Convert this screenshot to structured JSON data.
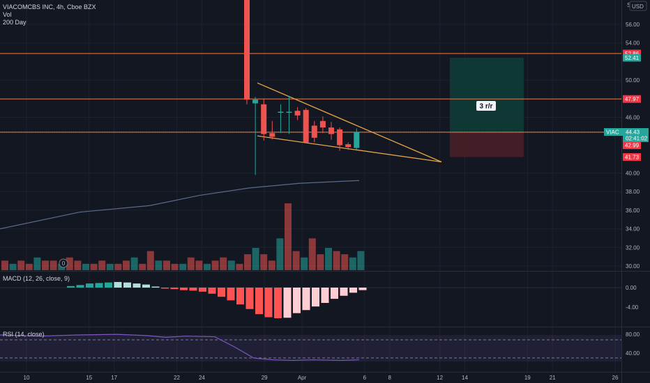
{
  "header": {
    "symbol_title": "VIACOMCBS INC, 4h, Cboe BZX",
    "vol_label": "Vol",
    "ma_label": "200 Day",
    "currency": "USD",
    "currency_prefix": "S"
  },
  "macd_header": "MACD (12, 26, close, 9)",
  "rsi_header": "RSI (14, close)",
  "volume_marker": "0",
  "annotation": "3 r/r",
  "price_tags": [
    {
      "text": "52.86",
      "price": 52.86,
      "color": "#f23645"
    },
    {
      "text": "52.41",
      "price": 52.41,
      "color": "#26a69a"
    },
    {
      "text": "47.97",
      "price": 47.97,
      "color": "#f23645"
    },
    {
      "text": "44.40",
      "price": 44.4,
      "color": "#26a69a"
    },
    {
      "text": "42.99",
      "price": 42.99,
      "color": "#f23645"
    },
    {
      "text": "41.73",
      "price": 41.73,
      "color": "#f23645"
    }
  ],
  "viac_tag": {
    "symbol": "VIAC",
    "price": "44.43",
    "countdown": "02:41:02",
    "color": "#26a69a"
  },
  "price_axis": [
    "56.00",
    "54.00",
    "50.00",
    "48.00",
    "46.00",
    "40.00",
    "38.00",
    "36.00",
    "34.00",
    "32.00",
    "30.00"
  ],
  "macd_axis": [
    "0.00",
    "-4.00"
  ],
  "rsi_axis": [
    "80.00",
    "40.00"
  ],
  "time_axis": [
    {
      "label": "10",
      "day": 10
    },
    {
      "label": "15",
      "day": 15
    },
    {
      "label": "17",
      "day": 17
    },
    {
      "label": "22",
      "day": 22
    },
    {
      "label": "24",
      "day": 24
    },
    {
      "label": "29",
      "day": 29
    },
    {
      "label": "Apr",
      "day": 32
    },
    {
      "label": "6",
      "day": 37
    },
    {
      "label": "8",
      "day": 39
    },
    {
      "label": "12",
      "day": 43
    },
    {
      "label": "14",
      "day": 45
    },
    {
      "label": "19",
      "day": 50
    },
    {
      "label": "21",
      "day": 52
    },
    {
      "label": "26",
      "day": 57
    }
  ],
  "colors": {
    "up": "#26a69a",
    "down": "#ef5350",
    "hline": "#f57c40",
    "trend": "#e8a44a",
    "ma": "#5b6b8c",
    "profit_zone": "#0f3b36",
    "loss_zone": "#4a1f27"
  },
  "chart_data": {
    "type": "candlestick",
    "title": "VIACOMCBS INC, 4h, Cboe BZX",
    "horizontal_lines": [
      52.86,
      47.97,
      44.4
    ],
    "candles": [
      {
        "o": 48.2,
        "h": 69.0,
        "l": 47.4,
        "c": 47.9
      },
      {
        "o": 47.5,
        "h": 48.2,
        "l": 39.8,
        "c": 47.9
      },
      {
        "o": 47.4,
        "h": 48.0,
        "l": 43.5,
        "c": 44.2
      },
      {
        "o": 44.3,
        "h": 45.6,
        "l": 43.6,
        "c": 43.9
      },
      {
        "o": 46.5,
        "h": 47.4,
        "l": 44.3,
        "c": 46.6
      },
      {
        "o": 46.6,
        "h": 48.3,
        "l": 44.2,
        "c": 46.6
      },
      {
        "o": 46.7,
        "h": 47.1,
        "l": 45.7,
        "c": 46.2
      },
      {
        "o": 46.8,
        "h": 47.0,
        "l": 43.2,
        "c": 43.3
      },
      {
        "o": 45.1,
        "h": 45.6,
        "l": 43.3,
        "c": 43.8
      },
      {
        "o": 45.6,
        "h": 46.1,
        "l": 44.3,
        "c": 44.9
      },
      {
        "o": 44.9,
        "h": 45.5,
        "l": 43.6,
        "c": 44.2
      },
      {
        "o": 44.7,
        "h": 44.9,
        "l": 42.4,
        "c": 43.0
      },
      {
        "o": 43.1,
        "h": 43.3,
        "l": 42.5,
        "c": 42.8
      },
      {
        "o": 42.7,
        "h": 44.8,
        "l": 42.4,
        "c": 44.43
      }
    ],
    "moving_average_200": [
      {
        "day": 0,
        "value": 34.0
      },
      {
        "day": 8,
        "value": 35.8
      },
      {
        "day": 15,
        "value": 36.5
      },
      {
        "day": 20,
        "value": 37.6
      },
      {
        "day": 25,
        "value": 38.4
      },
      {
        "day": 30,
        "value": 38.9
      },
      {
        "day": 36,
        "value": 39.2
      }
    ],
    "trendlines": [
      {
        "from": {
          "day": 28.8,
          "value": 49.7
        },
        "to": {
          "day": 42.8,
          "value": 41.2
        }
      },
      {
        "from": {
          "day": 28.8,
          "value": 44.0
        },
        "to": {
          "day": 42.8,
          "value": 41.2
        }
      }
    ],
    "position": {
      "entry": 44.43,
      "target": 52.41,
      "stop": 41.73
    },
    "volume": [
      3,
      2,
      3,
      2,
      4,
      3,
      3,
      2,
      4,
      3,
      2,
      2,
      3,
      2,
      2,
      3,
      4,
      2,
      6,
      3,
      3,
      2,
      2,
      4,
      3,
      2,
      3,
      4,
      3,
      2,
      5,
      7,
      5,
      3,
      10,
      21,
      6,
      4,
      10,
      5,
      7,
      6,
      5,
      4,
      6
    ],
    "macd_histogram": [
      0.3,
      0.5,
      0.8,
      0.9,
      1.0,
      1.1,
      1.0,
      0.8,
      0.6,
      0.2,
      -0.2,
      -0.3,
      -0.5,
      -0.6,
      -0.8,
      -1.2,
      -1.8,
      -2.5,
      -3.3,
      -4.2,
      -5.2,
      -5.8,
      -6.0,
      -5.9,
      -5.0,
      -4.4,
      -3.7,
      -3.0,
      -2.2,
      -1.6,
      -1.0,
      -0.5
    ],
    "rsi": [
      {
        "day": 0,
        "value": 80
      },
      {
        "day": 4,
        "value": 78
      },
      {
        "day": 8,
        "value": 80
      },
      {
        "day": 12,
        "value": 81
      },
      {
        "day": 15,
        "value": 79
      },
      {
        "day": 17,
        "value": 76
      },
      {
        "day": 19,
        "value": 78
      },
      {
        "day": 22,
        "value": 77
      },
      {
        "day": 24,
        "value": 60
      },
      {
        "day": 26,
        "value": 41
      },
      {
        "day": 28,
        "value": 38
      },
      {
        "day": 30,
        "value": 37
      },
      {
        "day": 32,
        "value": 38
      },
      {
        "day": 35,
        "value": 37
      },
      {
        "day": 36.8,
        "value": 38
      }
    ],
    "rsi_band": [
      40,
      70
    ],
    "price_range": [
      29,
      58
    ],
    "grid": true
  }
}
